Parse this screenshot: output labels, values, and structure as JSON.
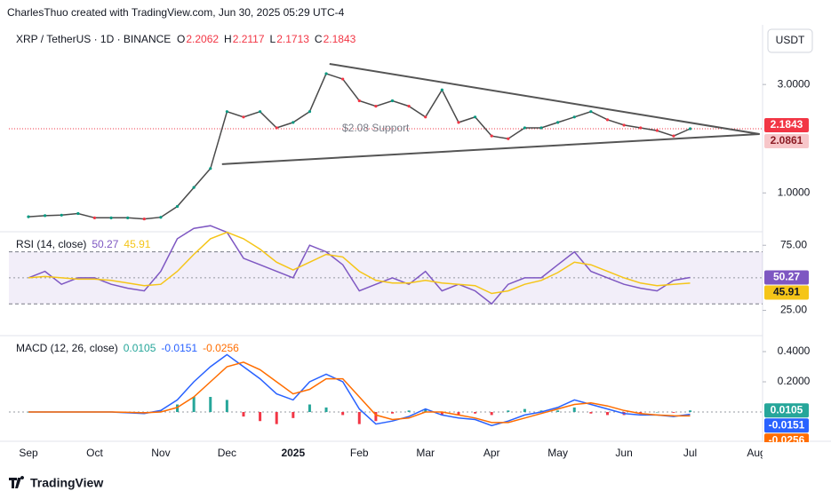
{
  "header": {
    "attribution": "CharlesThuo created with TradingView.com, Jun 30, 2025 05:29 UTC-4",
    "currency": "USDT",
    "footer": "TradingView"
  },
  "chart_data": [
    {
      "type": "line",
      "title": "XRP / TetherUS · 1D · BINANCE",
      "ohlc": [
        {
          "label": "O",
          "value": 2.2062
        },
        {
          "label": "H",
          "value": 2.2117
        },
        {
          "label": "L",
          "value": 2.1713
        },
        {
          "label": "C",
          "value": 2.1843
        }
      ],
      "categories": [
        "Sep",
        null,
        null,
        null,
        "Oct",
        null,
        null,
        null,
        "Nov",
        null,
        null,
        null,
        "Dec",
        null,
        null,
        null,
        "2025",
        null,
        null,
        null,
        "Feb",
        null,
        null,
        null,
        "Mar",
        null,
        null,
        null,
        "Apr",
        null,
        null,
        null,
        "May",
        null,
        null,
        null,
        "Jun",
        null,
        null,
        null,
        "Jul",
        null,
        null,
        null,
        "Aug"
      ],
      "values": [
        0.56,
        0.58,
        0.59,
        0.62,
        0.54,
        0.54,
        0.54,
        0.52,
        0.55,
        0.75,
        1.1,
        1.45,
        2.5,
        2.4,
        2.5,
        2.2,
        2.3,
        2.5,
        3.2,
        3.1,
        2.7,
        2.6,
        2.7,
        2.6,
        2.4,
        2.9,
        2.3,
        2.4,
        2.05,
        2.0,
        2.2,
        2.2,
        2.3,
        2.4,
        2.5,
        2.35,
        2.25,
        2.2,
        2.15,
        2.05,
        2.1843,
        null,
        null,
        null,
        null
      ],
      "color": "#4a4a4a",
      "ylim": [
        0.3,
        4.1
      ],
      "yticks": [
        {
          "value": 1,
          "label": "1.0000"
        },
        {
          "value": 3,
          "label": "3.0000"
        }
      ],
      "last_price": 2.1843,
      "support_price": 2.0861,
      "annotation": "$2.08 Support",
      "trendlines": [
        {
          "from": 3.38,
          "to": 2.0861
        },
        {
          "from": 1.53,
          "to": 2.0861
        }
      ]
    },
    {
      "type": "line",
      "title": "RSI (14, close)",
      "series": [
        {
          "color": "#7e57c2",
          "last_value": 50.27,
          "values": [
            50,
            55,
            45,
            50,
            50,
            45,
            42,
            40,
            55,
            80,
            88,
            90,
            85,
            65,
            60,
            55,
            50,
            75,
            70,
            60,
            40,
            45,
            50,
            45,
            55,
            40,
            45,
            40,
            30,
            45,
            50,
            50,
            60,
            70,
            55,
            50,
            45,
            42,
            40,
            48,
            50.27,
            null,
            null,
            null,
            null
          ]
        },
        {
          "color": "#f5c518",
          "last_value": 45.91,
          "values": [
            50,
            51,
            50,
            49,
            49,
            48,
            46,
            44,
            45,
            55,
            68,
            80,
            85,
            80,
            72,
            62,
            56,
            62,
            68,
            66,
            55,
            48,
            46,
            46,
            48,
            46,
            45,
            44,
            38,
            40,
            45,
            48,
            54,
            62,
            60,
            55,
            50,
            46,
            44,
            45,
            45.91,
            null,
            null,
            null,
            null
          ]
        }
      ],
      "ylim": [
        6.3,
        84.7
      ],
      "yticks": [
        {
          "value": 75,
          "label": "75.00"
        },
        {
          "value": 25,
          "label": "25.00"
        }
      ],
      "band": [
        30,
        70
      ],
      "midline": 50
    },
    {
      "type": "macd",
      "title": "MACD (12, 26, close)",
      "series": [
        {
          "color": "#26a69a",
          "negative_color": "#f23645",
          "last_value": 0.0105,
          "values": [
            0,
            0,
            0,
            0,
            0,
            0,
            -0.003,
            -0.005,
            0.01,
            0.05,
            0.1,
            0.1,
            0.08,
            -0.03,
            -0.06,
            -0.08,
            -0.04,
            0.05,
            0.03,
            -0.02,
            -0.08,
            -0.06,
            -0.01,
            0.01,
            0.02,
            -0.02,
            -0.02,
            -0.01,
            -0.02,
            0.01,
            0.02,
            0.01,
            0.01,
            0.03,
            -0.01,
            -0.02,
            -0.02,
            -0.01,
            0,
            -0.005,
            0.0105,
            null,
            null,
            null,
            null
          ]
        },
        {
          "color": "#2962ff",
          "last_value": -0.0151,
          "values": [
            0,
            0,
            0,
            0,
            0,
            0,
            -0.005,
            -0.01,
            0.01,
            0.08,
            0.2,
            0.3,
            0.38,
            0.3,
            0.22,
            0.12,
            0.08,
            0.2,
            0.25,
            0.2,
            0.02,
            -0.08,
            -0.06,
            -0.03,
            0.02,
            -0.02,
            -0.04,
            -0.05,
            -0.09,
            -0.06,
            -0.02,
            0,
            0.03,
            0.08,
            0.05,
            0.02,
            -0.01,
            -0.02,
            -0.02,
            -0.03,
            -0.0151,
            null,
            null,
            null,
            null
          ]
        },
        {
          "color": "#ff6d00",
          "last_value": -0.0256,
          "values": [
            0,
            0,
            0,
            0,
            0,
            0,
            -0.002,
            -0.005,
            0,
            0.03,
            0.1,
            0.2,
            0.3,
            0.33,
            0.28,
            0.2,
            0.12,
            0.15,
            0.22,
            0.22,
            0.1,
            -0.02,
            -0.05,
            -0.04,
            0,
            0,
            -0.02,
            -0.04,
            -0.07,
            -0.07,
            -0.04,
            -0.01,
            0.02,
            0.05,
            0.06,
            0.04,
            0.01,
            -0.01,
            -0.02,
            -0.025,
            -0.0256,
            null,
            null,
            null,
            null
          ]
        }
      ],
      "ylim": [
        -0.188,
        0.5
      ],
      "yticks": [
        {
          "value": 0.4,
          "label": "0.4000"
        },
        {
          "value": 0.2,
          "label": "0.2000"
        }
      ],
      "midline": 0
    }
  ]
}
